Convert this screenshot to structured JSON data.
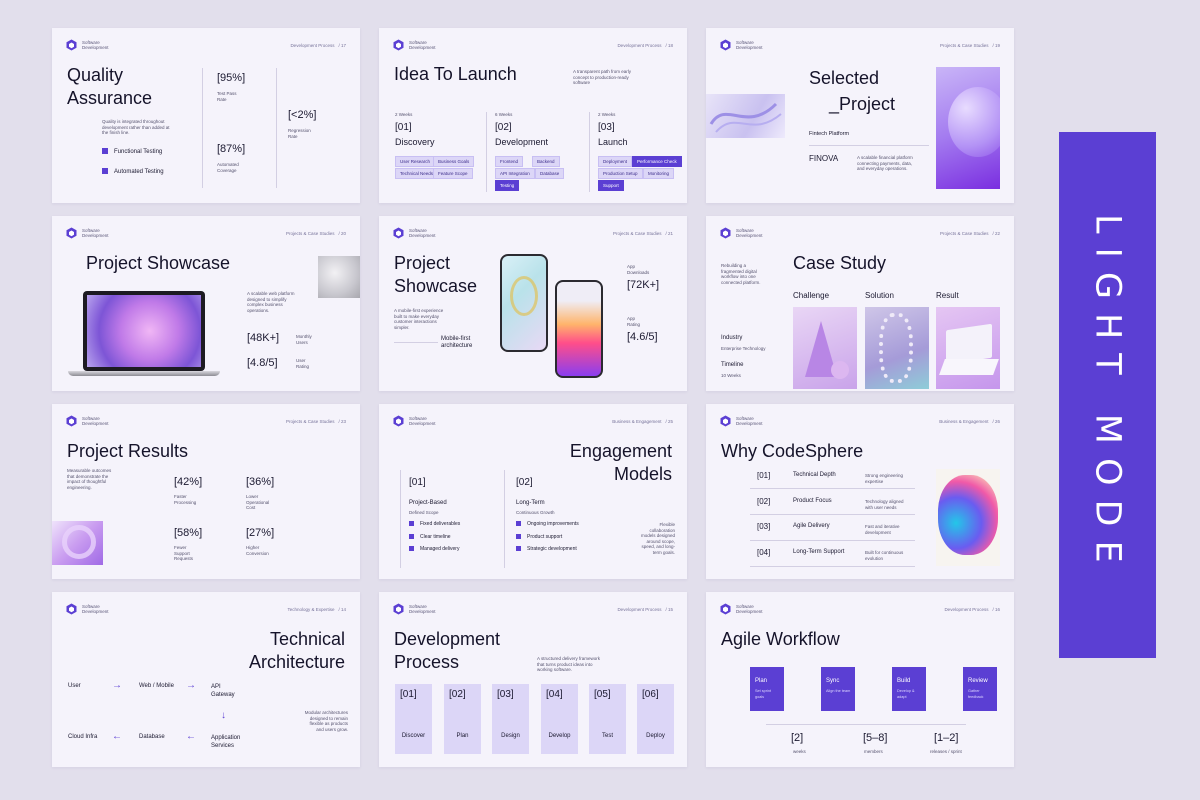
{
  "brand": "Software\nDevelopment",
  "banner": "LIGHT MODE",
  "s1": {
    "section": "Development Process",
    "page": "17",
    "title1": "Quality",
    "title2": "Assurance",
    "desc": "Quality is integrated throughout development rather than added at the finish line.",
    "b1": "Functional Testing",
    "b2": "Automated Testing",
    "m1": "[95%]",
    "l1": "Test Pass Rate",
    "m2": "[87%]",
    "l2": "Automated Coverage",
    "m3": "[<2%]",
    "l3": "Regression Rate"
  },
  "s2": {
    "section": "Development Process",
    "page": "18",
    "title": "Idea To Launch",
    "desc": "A transparent path from early concept to production-ready software",
    "cols": [
      {
        "dur": "2 Weeks",
        "num": "[01]",
        "name": "Discovery",
        "tags": [
          "User Research",
          "Business Goals",
          "Technical Needs",
          "Feature Scope"
        ]
      },
      {
        "dur": "6 Weeks",
        "num": "[02]",
        "name": "Development",
        "tags": [
          "Frontend",
          "Backend",
          "API Integration",
          "Database",
          "Testing"
        ]
      },
      {
        "dur": "2 Weeks",
        "num": "[03]",
        "name": "Launch",
        "tags": [
          "Deployment",
          "Performance Check",
          "Production Setup",
          "Monitoring",
          "Support"
        ]
      }
    ]
  },
  "s3": {
    "section": "Projects & Case Studies",
    "page": "19",
    "title1": "Selected",
    "title2": "_Project",
    "label": "Fintech Platform",
    "name": "FINOVA",
    "desc": "A scalable financial platform connecting payments, data, and everyday operations."
  },
  "s4": {
    "section": "Projects & Case Studies",
    "page": "20",
    "title": "Project Showcase",
    "desc": "A scalable web platform designed to simplify complex business operations.",
    "m1": "[48K+]",
    "l1": "Monthly Users",
    "m2": "[4.8/5]",
    "l2": "User Rating"
  },
  "s5": {
    "section": "Projects & Case Studies",
    "page": "21",
    "title1": "Project",
    "title2": "Showcase",
    "desc": "A mobile-first experience built to make everyday customer interactions simpler.",
    "sub1": "Mobile-first",
    "sub2": "architecture",
    "l1": "App Downloads",
    "m1": "[72K+]",
    "l2": "App Rating",
    "m2": "[4.6/5]"
  },
  "s6": {
    "section": "Projects & Case Studies",
    "page": "22",
    "title": "Case Study",
    "desc": "Rebuilding a fragmented digital workflow into one connected platform.",
    "c1": "Challenge",
    "c2": "Solution",
    "c3": "Result",
    "k1": "Industry",
    "v1": "Enterprise Technology",
    "k2": "Timeline",
    "v2": "10 Weeks"
  },
  "s7": {
    "section": "Projects & Case Studies",
    "page": "23",
    "title": "Project Results",
    "desc": "Measurable outcomes that demonstrate the impact of thoughtful engineering.",
    "stats": [
      {
        "v": "[42%]",
        "l": "Faster Processing"
      },
      {
        "v": "[36%]",
        "l": "Lower Operational Cost"
      },
      {
        "v": "[58%]",
        "l": "Fewer Support Requests"
      },
      {
        "v": "[27%]",
        "l": "Higher Conversion"
      }
    ]
  },
  "s8": {
    "section": "Business & Engagement",
    "page": "25",
    "title1": "Engagement",
    "title2": "Models",
    "a_num": "[01]",
    "a_name": "Project-Based",
    "a_sub": "Defined Scope",
    "a_items": [
      "Fixed deliverables",
      "Clear timeline",
      "Managed delivery"
    ],
    "b_num": "[02]",
    "b_name": "Long-Term",
    "b_sub": "Continuous Growth",
    "b_items": [
      "Ongoing improvements",
      "Product support",
      "Strategic development"
    ],
    "desc": "Flexible collaboration models designed around scope, speed, and long-term goals."
  },
  "s9": {
    "section": "Business & Engagement",
    "page": "26",
    "title": "Why CodeSphere",
    "rows": [
      {
        "n": "[01]",
        "k": "Technical Depth",
        "d": "Strong engineering expertise"
      },
      {
        "n": "[02]",
        "k": "Product Focus",
        "d": "Technology aligned with user needs"
      },
      {
        "n": "[03]",
        "k": "Agile Delivery",
        "d": "Fast and iterative development"
      },
      {
        "n": "[04]",
        "k": "Long-Term Support",
        "d": "Built for continuous evolution"
      }
    ]
  },
  "s10": {
    "section": "Technology & Expertise",
    "page": "14",
    "title1": "Technical",
    "title2": "Architecture",
    "n1": "User",
    "n2": "Web / Mobile",
    "n3": "API\nGateway",
    "n4": "Application\nServices",
    "n5": "Database",
    "n6": "Cloud Infra",
    "desc": "Modular architectures designed to remain flexible as products and users grow."
  },
  "s11": {
    "section": "Development Process",
    "page": "15",
    "title1": "Development",
    "title2": "Process",
    "desc": "A structured delivery framework that turns product ideas into working software.",
    "steps": [
      {
        "n": "[01]",
        "l": "Discover"
      },
      {
        "n": "[02]",
        "l": "Plan"
      },
      {
        "n": "[03]",
        "l": "Design"
      },
      {
        "n": "[04]",
        "l": "Develop"
      },
      {
        "n": "[05]",
        "l": "Test"
      },
      {
        "n": "[06]",
        "l": "Deploy"
      }
    ]
  },
  "s12": {
    "section": "Development Process",
    "page": "16",
    "title": "Agile Workflow",
    "cards": [
      {
        "h": "Plan",
        "d": "Set sprint goals"
      },
      {
        "h": "Sync",
        "d": "Align the team"
      },
      {
        "h": "Build",
        "d": "Develop & adapt"
      },
      {
        "h": "Review",
        "d": "Gather feedback"
      }
    ],
    "stats": [
      {
        "v": "[2]",
        "l": "weeks"
      },
      {
        "v": "[5–8]",
        "l": "members"
      },
      {
        "v": "[1–2]",
        "l": "releases / sprint"
      }
    ]
  },
  "colors": {
    "accent": "#5b3fd3",
    "bg": "#e2dfec",
    "slide": "#f5f3fb",
    "chip": "#dcd6f7"
  }
}
